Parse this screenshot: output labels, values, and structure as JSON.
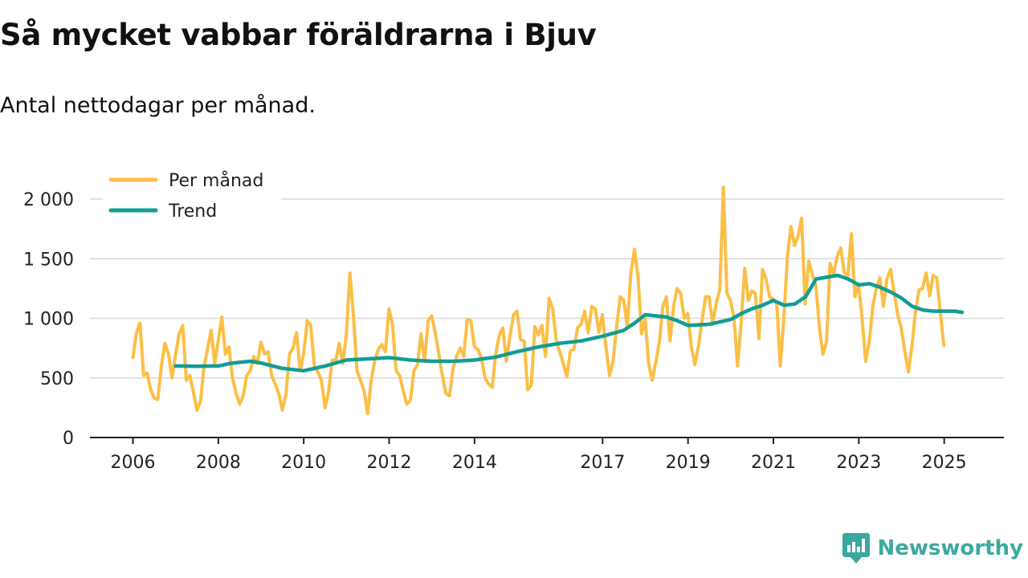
{
  "title": "Så mycket vabbar föräldrarna i Bjuv",
  "subtitle": "Antal nettodagar per månad.",
  "brand": {
    "name": "Newsworthy",
    "icon": "newsworthy-logo-icon",
    "color": "#3ba9a0"
  },
  "colors": {
    "per_month": "#fbbf47",
    "trend": "#129c95",
    "grid": "#d9d9d9",
    "axis": "#222222"
  },
  "chart_data": {
    "type": "line",
    "title": "Så mycket vabbar föräldrarna i Bjuv",
    "subtitle": "Antal nettodagar per månad.",
    "xlabel": "",
    "ylabel": "",
    "ylim": [
      0,
      2000
    ],
    "yticks": [
      0,
      500,
      1000,
      1500,
      2000
    ],
    "ytick_labels": [
      "0",
      "500",
      "1 000",
      "1 500",
      "2 000"
    ],
    "xlim": [
      2006.0,
      2025.42
    ],
    "xticks": [
      2006,
      2008,
      2010,
      2012,
      2014,
      2017,
      2019,
      2021,
      2023,
      2025
    ],
    "xtick_labels": [
      "2006",
      "2008",
      "2010",
      "2012",
      "2014",
      "2017",
      "2019",
      "2021",
      "2023",
      "2025"
    ],
    "grid": true,
    "legend_position": "top-left",
    "series": [
      {
        "name": "Per månad",
        "x_start": 2006.0,
        "x_step": 0.0833,
        "values": [
          670,
          880,
          960,
          520,
          540,
          400,
          330,
          320,
          600,
          790,
          700,
          500,
          700,
          870,
          940,
          480,
          520,
          380,
          230,
          300,
          600,
          740,
          900,
          620,
          820,
          1010,
          700,
          760,
          500,
          370,
          280,
          350,
          520,
          560,
          680,
          620,
          800,
          700,
          720,
          520,
          450,
          370,
          230,
          350,
          700,
          750,
          880,
          560,
          700,
          980,
          940,
          600,
          550,
          480,
          250,
          380,
          650,
          640,
          790,
          620,
          860,
          1380,
          1020,
          560,
          480,
          390,
          200,
          480,
          650,
          740,
          780,
          720,
          1080,
          940,
          560,
          520,
          390,
          280,
          310,
          560,
          610,
          870,
          640,
          980,
          1020,
          880,
          700,
          520,
          370,
          350,
          580,
          680,
          750,
          680,
          990,
          980,
          760,
          740,
          660,
          500,
          450,
          420,
          700,
          860,
          920,
          640,
          850,
          1030,
          1060,
          820,
          810,
          400,
          440,
          930,
          860,
          940,
          680,
          1170,
          1080,
          820,
          720,
          620,
          510,
          730,
          740,
          920,
          950,
          1060,
          880,
          1100,
          1080,
          880,
          1030,
          760,
          520,
          640,
          930,
          1180,
          1150,
          930,
          1380,
          1580,
          1350,
          870,
          1000,
          620,
          480,
          630,
          800,
          1100,
          1180,
          810,
          1100,
          1250,
          1210,
          1000,
          1040,
          760,
          610,
          770,
          980,
          1180,
          1180,
          950,
          1130,
          1240,
          2100,
          1210,
          1150,
          1000,
          600,
          960,
          1420,
          1150,
          1230,
          1210,
          830,
          1410,
          1330,
          1180,
          1160,
          1130,
          600,
          1000,
          1520,
          1770,
          1610,
          1690,
          1840,
          1120,
          1480,
          1370,
          1280,
          920,
          700,
          800,
          1460,
          1370,
          1520,
          1590,
          1380,
          1360,
          1710,
          1180,
          1290,
          1000,
          640,
          800,
          1100,
          1250,
          1340,
          1100,
          1330,
          1410,
          1220,
          1030,
          920,
          730,
          550,
          760,
          1050,
          1240,
          1250,
          1380,
          1190,
          1360,
          1340,
          1050,
          770
        ]
      },
      {
        "name": "Trend",
        "points": [
          [
            2007.0,
            600
          ],
          [
            2007.5,
            598
          ],
          [
            2008.0,
            600
          ],
          [
            2008.25,
            620
          ],
          [
            2008.5,
            630
          ],
          [
            2008.75,
            640
          ],
          [
            2009.0,
            625
          ],
          [
            2009.5,
            580
          ],
          [
            2010.0,
            560
          ],
          [
            2010.5,
            600
          ],
          [
            2011.0,
            650
          ],
          [
            2011.5,
            660
          ],
          [
            2012.0,
            670
          ],
          [
            2012.5,
            650
          ],
          [
            2013.0,
            640
          ],
          [
            2013.5,
            640
          ],
          [
            2014.0,
            650
          ],
          [
            2014.5,
            675
          ],
          [
            2015.0,
            720
          ],
          [
            2015.5,
            760
          ],
          [
            2016.0,
            790
          ],
          [
            2016.5,
            810
          ],
          [
            2017.0,
            850
          ],
          [
            2017.5,
            900
          ],
          [
            2017.75,
            960
          ],
          [
            2018.0,
            1030
          ],
          [
            2018.5,
            1010
          ],
          [
            2018.75,
            980
          ],
          [
            2019.0,
            940
          ],
          [
            2019.5,
            950
          ],
          [
            2020.0,
            990
          ],
          [
            2020.25,
            1040
          ],
          [
            2020.5,
            1080
          ],
          [
            2020.75,
            1110
          ],
          [
            2021.0,
            1150
          ],
          [
            2021.25,
            1110
          ],
          [
            2021.5,
            1120
          ],
          [
            2021.75,
            1180
          ],
          [
            2022.0,
            1330
          ],
          [
            2022.5,
            1360
          ],
          [
            2022.75,
            1330
          ],
          [
            2023.0,
            1280
          ],
          [
            2023.25,
            1290
          ],
          [
            2023.5,
            1260
          ],
          [
            2023.75,
            1220
          ],
          [
            2024.0,
            1170
          ],
          [
            2024.25,
            1100
          ],
          [
            2024.5,
            1070
          ],
          [
            2024.75,
            1060
          ],
          [
            2025.0,
            1060
          ],
          [
            2025.25,
            1060
          ],
          [
            2025.42,
            1050
          ]
        ]
      }
    ],
    "legend": [
      "Per månad",
      "Trend"
    ]
  }
}
